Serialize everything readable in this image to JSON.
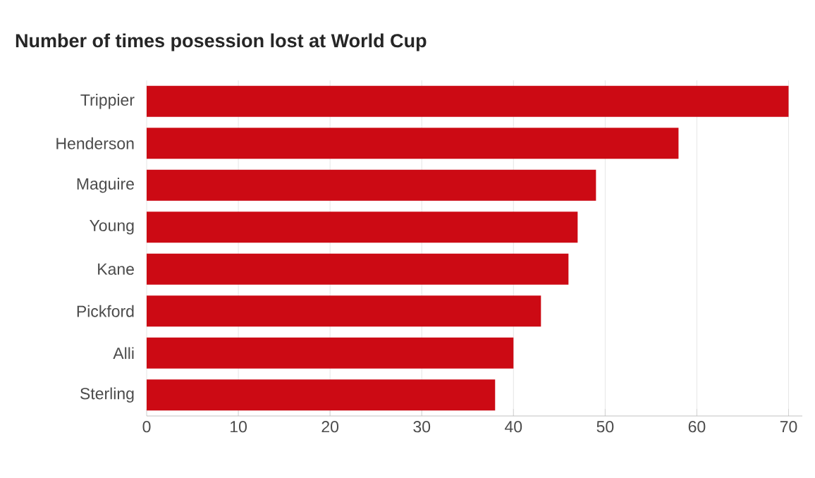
{
  "chart_data": {
    "type": "bar",
    "orientation": "horizontal",
    "title": "Number of times posession lost at World Cup",
    "categories": [
      "Trippier",
      "Henderson",
      "Maguire",
      "Young",
      "Kane",
      "Pickford",
      "Alli",
      "Sterling"
    ],
    "values": [
      70,
      58,
      49,
      47,
      46,
      43,
      40,
      38
    ],
    "color": "#cc0a14",
    "xlim": [
      0,
      71.5
    ],
    "xticks": [
      0,
      10,
      20,
      30,
      40,
      50,
      60,
      70
    ],
    "grid": "x"
  }
}
